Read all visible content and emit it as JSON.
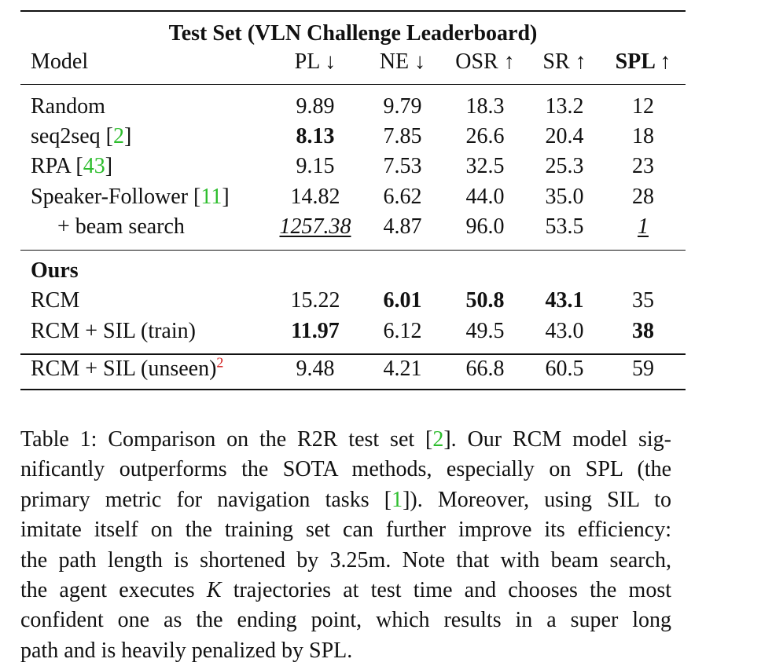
{
  "table": {
    "title": "Test Set (VLN Challenge Leaderboard)",
    "headers": {
      "model": "Model",
      "pl": "PL ↓",
      "ne": "NE ↓",
      "osr": "OSR ↑",
      "sr": "SR ↑",
      "spl": "SPL ↑"
    },
    "rows": [
      {
        "model": "Random",
        "cite": "",
        "pl": "9.89",
        "ne": "9.79",
        "osr": "18.3",
        "sr": "13.2",
        "spl": "12"
      },
      {
        "model": "seq2seq [",
        "cite": "2",
        "close": "]",
        "pl": "8.13",
        "ne": "7.85",
        "osr": "26.6",
        "sr": "20.4",
        "spl": "18"
      },
      {
        "model": "RPA [",
        "cite": "43",
        "close": "]",
        "pl": "9.15",
        "ne": "7.53",
        "osr": "32.5",
        "sr": "25.3",
        "spl": "23"
      },
      {
        "model": "Speaker-Follower [",
        "cite": "11",
        "close": "]",
        "pl": "14.82",
        "ne": "6.62",
        "osr": "44.0",
        "sr": "35.0",
        "spl": "28"
      },
      {
        "model": "+ beam search",
        "cite": "",
        "pl": "1257.38",
        "ne": "4.87",
        "osr": "96.0",
        "sr": "53.5",
        "spl": "1"
      }
    ],
    "section_label": "Ours",
    "ours_rows": [
      {
        "model": "RCM",
        "pl": "15.22",
        "ne": "6.01",
        "osr": "50.8",
        "sr": "43.1",
        "spl": "35"
      },
      {
        "model": "RCM + SIL (train)",
        "pl": "11.97",
        "ne": "6.12",
        "osr": "49.5",
        "sr": "43.0",
        "spl": "38"
      }
    ],
    "unseen_row": {
      "model": "RCM + SIL (unseen)",
      "sup": "2",
      "pl": "9.48",
      "ne": "4.21",
      "osr": "66.8",
      "sr": "60.5",
      "spl": "59"
    }
  },
  "caption": {
    "line1_a": "Table 1: Comparison on the R2R test set [",
    "line1_cite": "2",
    "line1_b": "]. Our RCM model sig-",
    "line2": "nificantly outperforms the SOTA methods, especially on SPL (the",
    "line3_a": "primary metric for navigation tasks [",
    "line3_cite": "1",
    "line3_b": "]).  Moreover, using SIL to",
    "line4": "imitate itself on the training set can further improve its efficiency:",
    "line5": "the path length is shortened by 3.25m. Note that with beam search,",
    "line6_a": "the agent executes ",
    "line6_k": "K",
    "line6_b": " trajectories at test time and chooses the most",
    "line7": "confident one as the ending point, which results in a super long",
    "line8": "path and is heavily penalized by SPL."
  },
  "colors": {
    "citation": "#2dbd2d",
    "footnote": "#d01919"
  }
}
